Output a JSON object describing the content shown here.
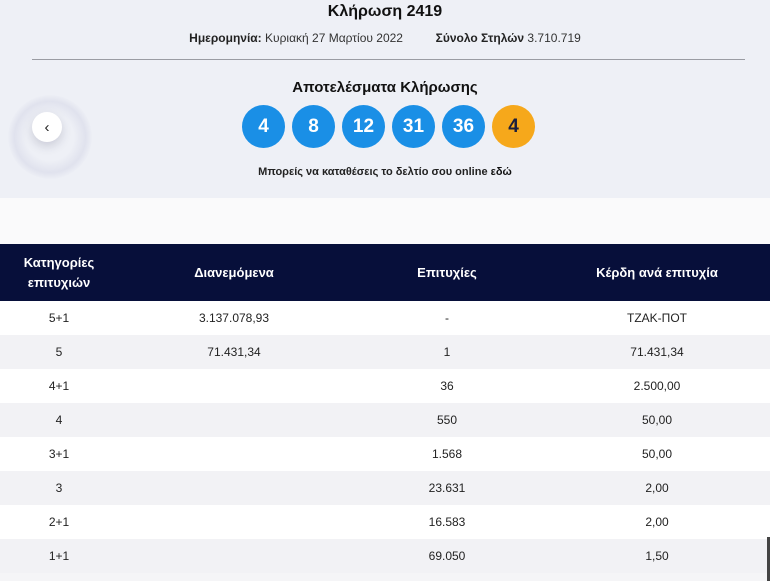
{
  "header": {
    "title": "Κλήρωση 2419",
    "date_label": "Ημερομηνία:",
    "date_value": "Κυριακή 27 Μαρτίου 2022",
    "columns_label": "Σύνολο Στηλών",
    "columns_value": "3.710.719"
  },
  "results": {
    "title": "Αποτελέσματα Κλήρωσης",
    "numbers": [
      "4",
      "8",
      "12",
      "31",
      "36"
    ],
    "bonus": "4",
    "colors": {
      "main": "#1a8fe6",
      "bonus": "#f6a81b"
    }
  },
  "nav": {
    "back_icon": "chevron-left-icon",
    "back_glyph": "‹"
  },
  "online": {
    "text": "Μπορείς να καταθέσεις το δελτίο σου online ",
    "link": "εδώ"
  },
  "table": {
    "headers": [
      "Κατηγορίες επιτυχιών",
      "Διανεμόμενα",
      "Επιτυχίες",
      "Κέρδη ανά επιτυχία"
    ],
    "header_bg": "#070f3a",
    "rows": [
      [
        "5+1",
        "3.137.078,93",
        "-",
        "ΤΖΑΚ-ΠΟΤ"
      ],
      [
        "5",
        "71.431,34",
        "1",
        "71.431,34"
      ],
      [
        "4+1",
        "",
        "36",
        "2.500,00"
      ],
      [
        "4",
        "",
        "550",
        "50,00"
      ],
      [
        "3+1",
        "",
        "1.568",
        "50,00"
      ],
      [
        "3",
        "",
        "23.631",
        "2,00"
      ],
      [
        "2+1",
        "",
        "16.583",
        "2,00"
      ],
      [
        "1+1",
        "",
        "69.050",
        "1,50"
      ]
    ]
  }
}
